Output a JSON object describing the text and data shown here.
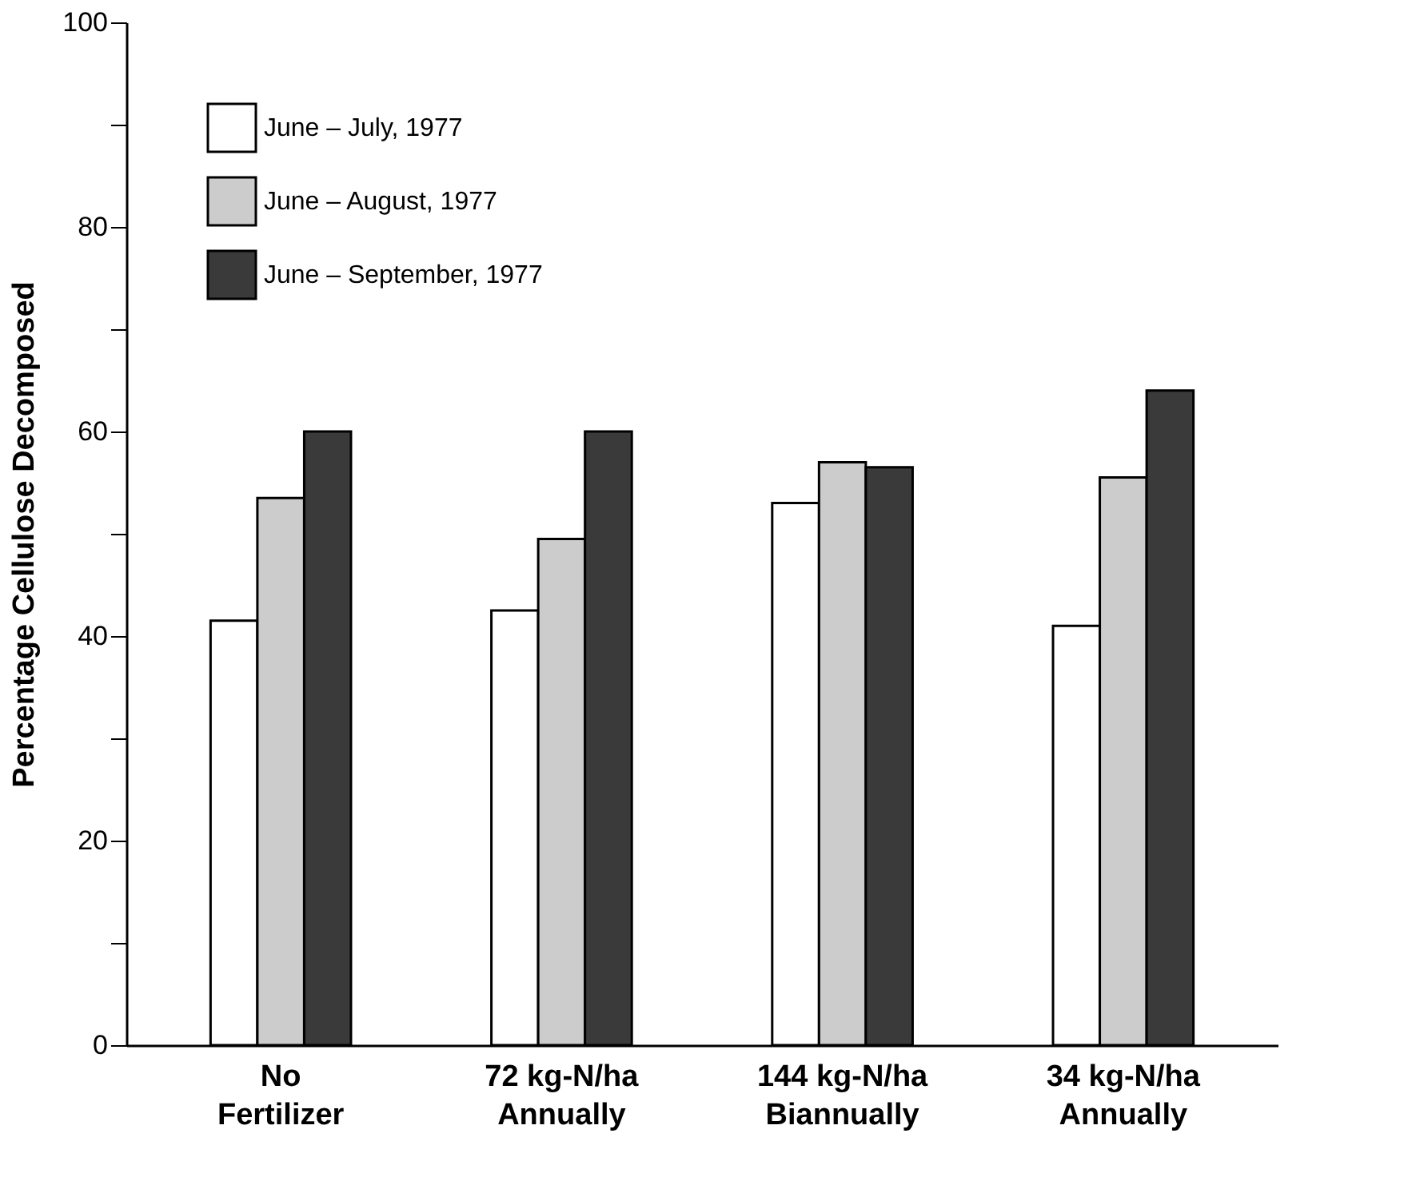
{
  "chart_data": {
    "type": "bar",
    "ylabel": "Percentage Cellulose Decomposed",
    "categories": [
      "No\nFertilizer",
      "72 kg-N/ha\nAnnually",
      "144 kg-N/ha\nBiannually",
      "34 kg-N/ha\nAnnually"
    ],
    "series": [
      {
        "name": "June – July, 1977",
        "color": "#ffffff",
        "values": [
          41.5,
          42.5,
          53,
          41
        ]
      },
      {
        "name": "June – August, 1977",
        "color": "#cccccc",
        "values": [
          53.5,
          49.5,
          57,
          55.5
        ]
      },
      {
        "name": "June – September, 1977",
        "color": "#3a3a3a",
        "values": [
          60,
          60,
          56.5,
          64
        ]
      }
    ],
    "ylim": [
      0,
      100
    ],
    "yticks": [
      0,
      {
        "value": 10,
        "label": null
      },
      20,
      {
        "value": 30,
        "label": null
      },
      40,
      {
        "value": 50,
        "label": null
      },
      60,
      {
        "value": 70,
        "label": null
      },
      80,
      {
        "value": 90,
        "label": null
      },
      100
    ],
    "grid": false,
    "legend": "top left"
  }
}
